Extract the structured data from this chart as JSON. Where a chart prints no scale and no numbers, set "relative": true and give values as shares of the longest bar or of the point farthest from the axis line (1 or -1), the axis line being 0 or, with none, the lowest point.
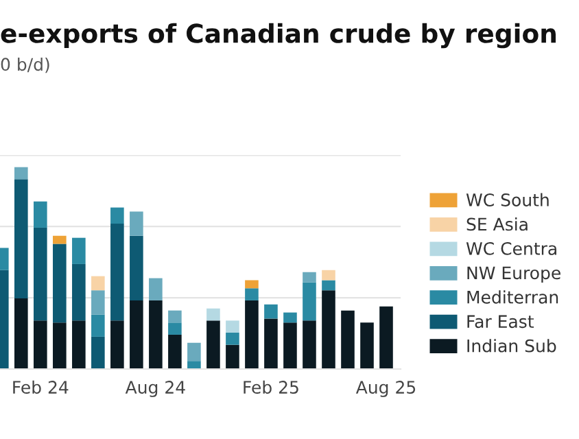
{
  "chart_data": {
    "type": "bar",
    "stacked": true,
    "relative": true,
    "title": "e-exports of Canadian crude by region",
    "subtitle": "0 b/d)",
    "categories": [
      null,
      null,
      "Feb 24",
      null,
      null,
      null,
      null,
      null,
      "Aug 24",
      null,
      null,
      null,
      null,
      null,
      "Feb 25",
      null,
      null,
      null,
      null,
      null,
      "Aug 25"
    ],
    "series": [
      {
        "name": "Indian Sub",
        "color": "#0b1a22",
        "values": [
          0,
          0.35,
          0.24,
          0.23,
          0.24,
          0,
          0.24,
          0.34,
          0.34,
          0.17,
          0,
          0.24,
          0.12,
          0.34,
          0.25,
          0.23,
          0.24,
          0.39,
          0.29,
          0.23,
          0.31
        ]
      },
      {
        "name": "Far East",
        "color": "#0e5a73",
        "values": [
          0.49,
          0.59,
          0.46,
          0.39,
          0.28,
          0.16,
          0.48,
          0.32,
          0,
          0,
          0,
          0,
          0,
          0,
          0,
          0,
          0,
          0,
          0,
          0,
          0
        ]
      },
      {
        "name": "Mediterran",
        "color": "#2a8aa3",
        "values": [
          0.11,
          0,
          0.13,
          0,
          0.13,
          0.11,
          0.08,
          0,
          0,
          0.06,
          0.04,
          0,
          0.06,
          0.06,
          0.07,
          0.05,
          0.19,
          0.05,
          0,
          0,
          0
        ]
      },
      {
        "name": "NW Europe",
        "color": "#6aaabd",
        "values": [
          0,
          0.06,
          0,
          0,
          0,
          0.12,
          0,
          0.12,
          0.11,
          0.06,
          0.09,
          0,
          0,
          0,
          0,
          0,
          0.05,
          0,
          0,
          0,
          0
        ]
      },
      {
        "name": "WC Centra",
        "color": "#b5d9e3",
        "values": [
          0,
          0,
          0,
          0,
          0,
          0,
          0,
          0,
          0,
          0,
          0,
          0.06,
          0.06,
          0,
          0,
          0,
          0,
          0,
          0,
          0,
          0
        ]
      },
      {
        "name": "SE Asia",
        "color": "#f8d3a6",
        "values": [
          0,
          0,
          0,
          0,
          0,
          0.07,
          0,
          0,
          0,
          0,
          0,
          0,
          0,
          0,
          0,
          0,
          0,
          0.05,
          0,
          0,
          0
        ]
      },
      {
        "name": "WC South",
        "color": "#eea237",
        "values": [
          0,
          0,
          0,
          0.04,
          0,
          0,
          0,
          0,
          0,
          0,
          0,
          0,
          0,
          0.04,
          0,
          0,
          0,
          0,
          0,
          0,
          0
        ]
      }
    ],
    "ref_lines": [
      {
        "axis": "y",
        "value": 0.353,
        "color": "#e4e4e4"
      },
      {
        "axis": "y",
        "value": 0.706,
        "color": "#e4e4e4"
      },
      {
        "axis": "y",
        "value": 1.059,
        "color": "#e4e4e4"
      }
    ],
    "legend": "right",
    "tick_labels": "x"
  }
}
